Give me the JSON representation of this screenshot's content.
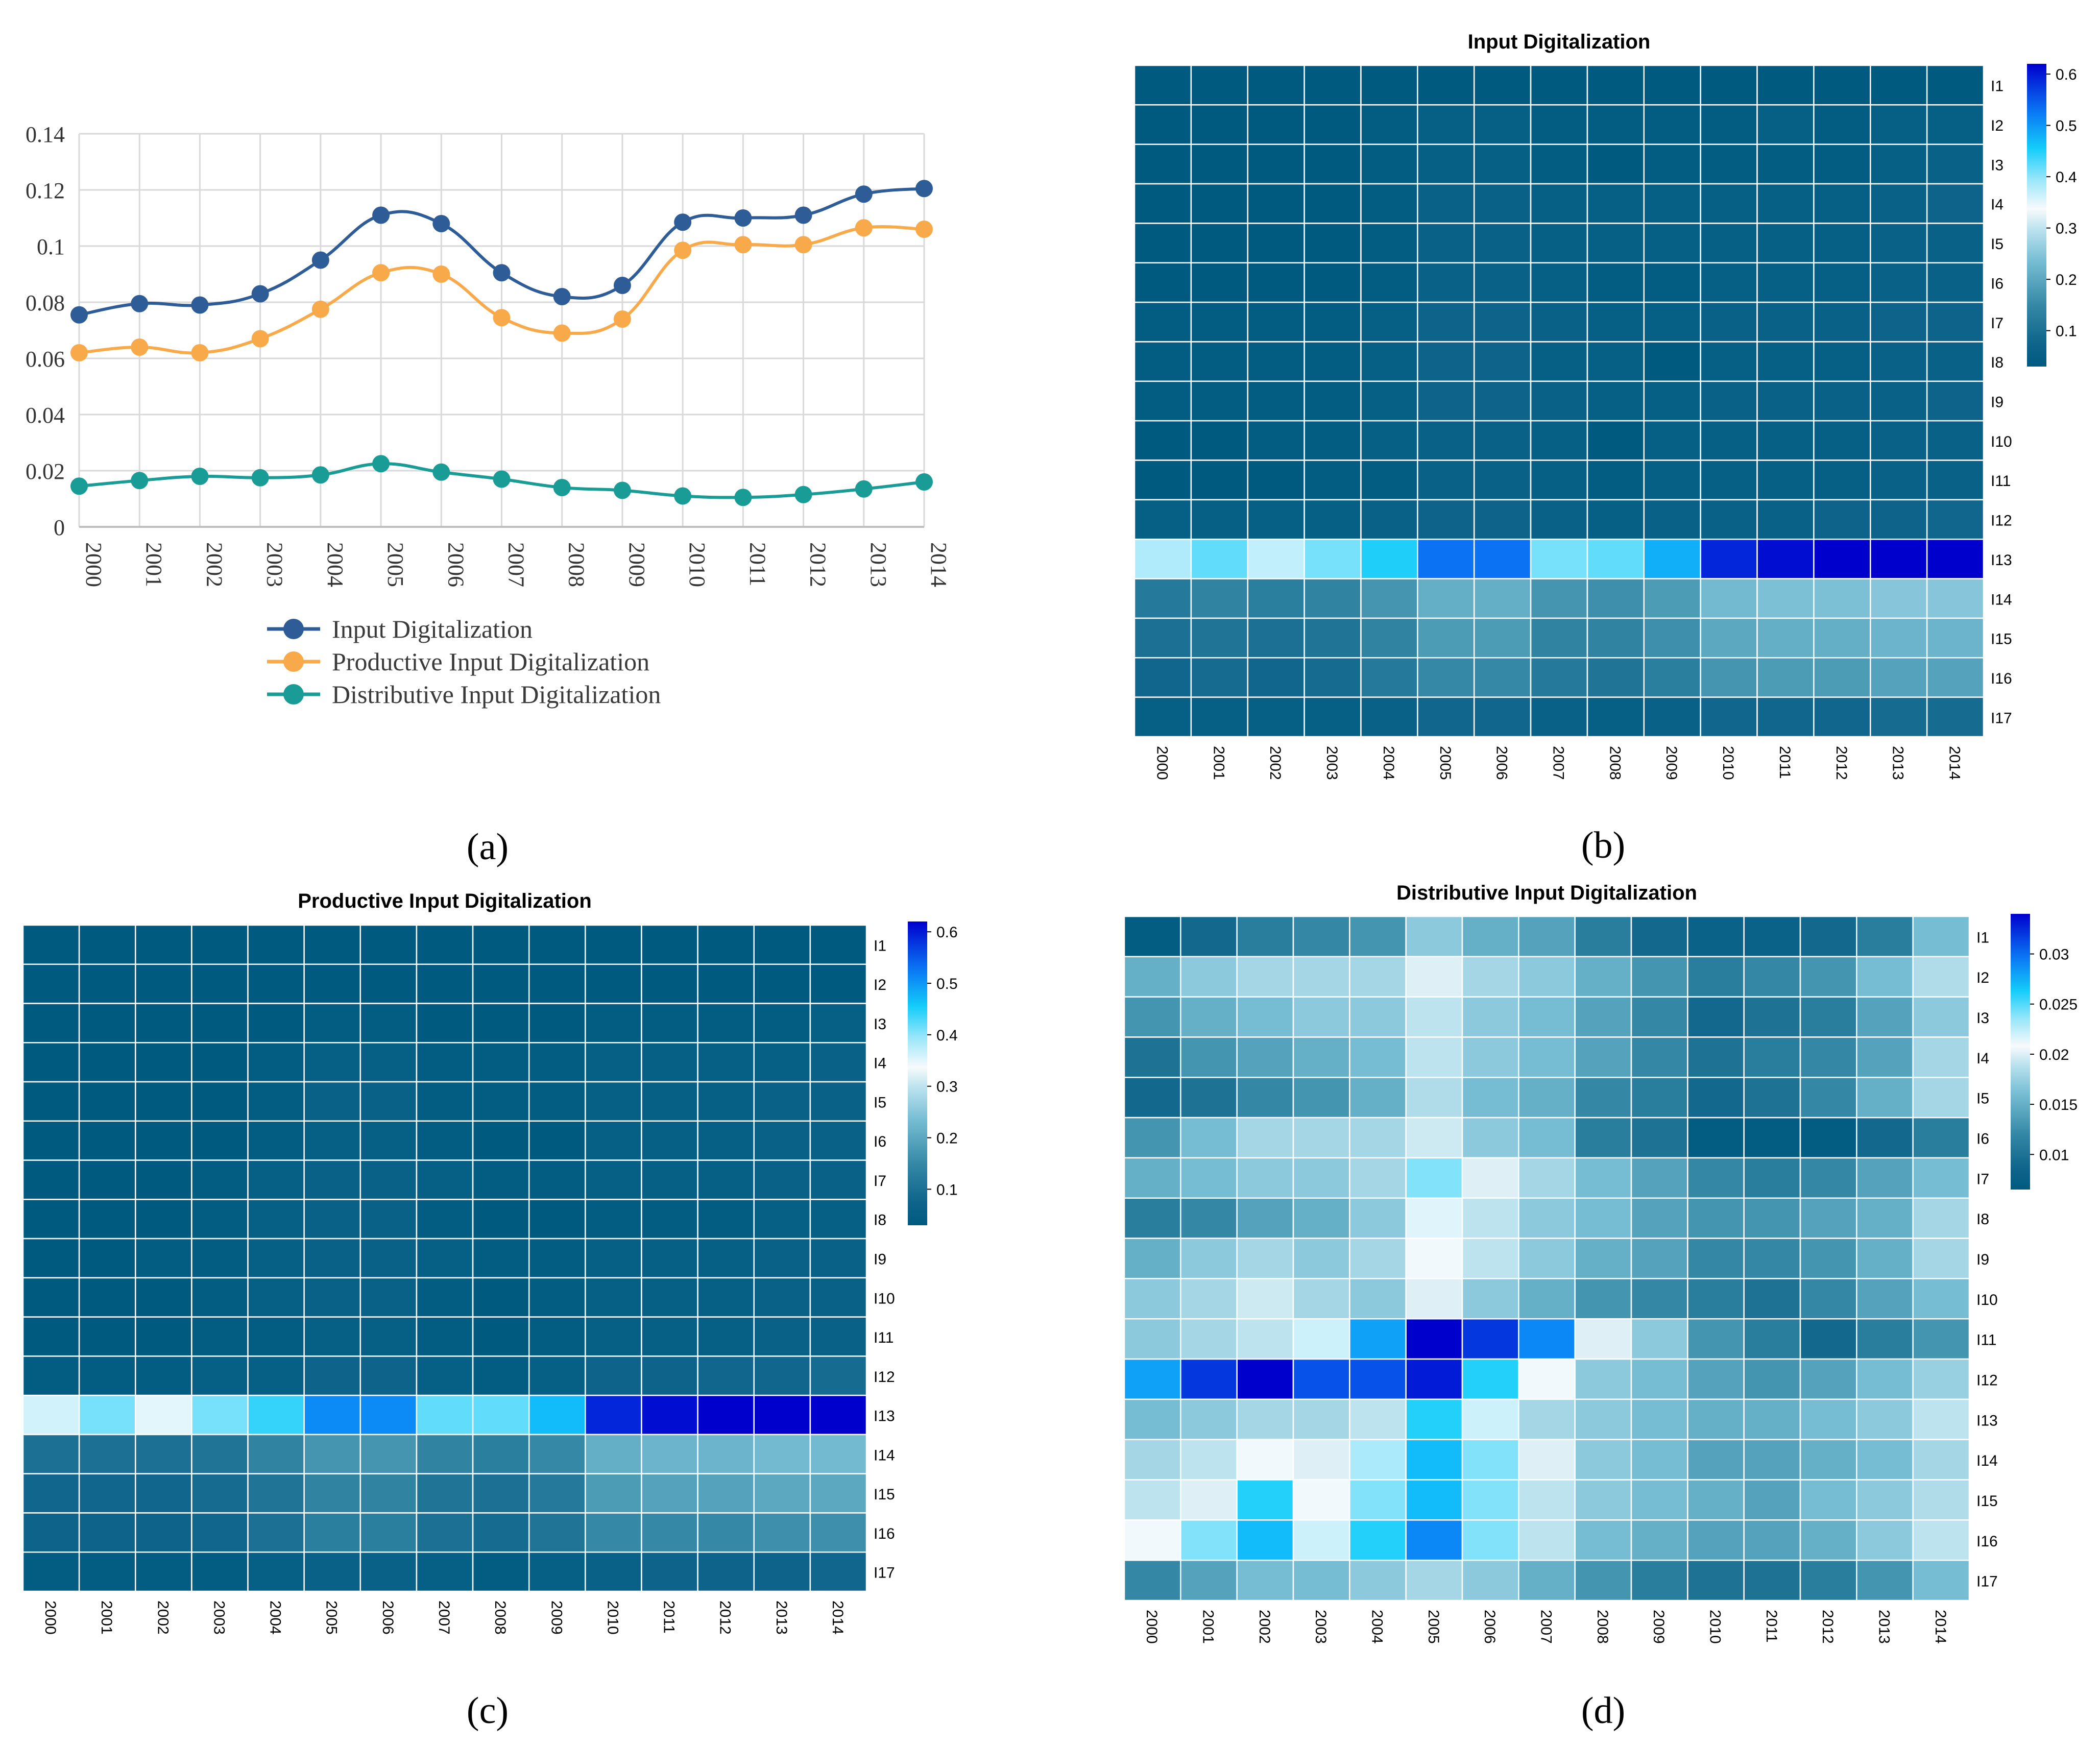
{
  "chart_data": [
    {
      "panel": "(a)",
      "type": "line",
      "title": "",
      "categories": [
        "2000",
        "2001",
        "2002",
        "2003",
        "2004",
        "2005",
        "2006",
        "2007",
        "2008",
        "2009",
        "2010",
        "2011",
        "2012",
        "2013",
        "2014"
      ],
      "y_ticks": [
        "0",
        "0.02",
        "0.04",
        "0.06",
        "0.08",
        "0.1",
        "0.12",
        "0.14"
      ],
      "ylim": [
        0,
        0.14
      ],
      "series": [
        {
          "name": "Input Digitalization",
          "color": "#2e5c97",
          "values": [
            0.0755,
            0.0795,
            0.079,
            0.083,
            0.095,
            0.111,
            0.108,
            0.0905,
            0.082,
            0.086,
            0.1085,
            0.11,
            0.111,
            0.1185,
            0.1205
          ]
        },
        {
          "name": "Productive Input Digitalization",
          "color": "#f8a94a",
          "values": [
            0.062,
            0.064,
            0.062,
            0.067,
            0.0775,
            0.0905,
            0.09,
            0.0745,
            0.069,
            0.074,
            0.0985,
            0.1005,
            0.1005,
            0.1065,
            0.106
          ]
        },
        {
          "name": "Distributive Input Digitalization",
          "color": "#1a9c96",
          "values": [
            0.0145,
            0.0165,
            0.018,
            0.0175,
            0.0185,
            0.0225,
            0.0195,
            0.017,
            0.014,
            0.013,
            0.011,
            0.0105,
            0.0115,
            0.0135,
            0.016
          ]
        }
      ]
    },
    {
      "panel": "(b)",
      "type": "heatmap",
      "title": "Input Digitalization",
      "columns": [
        "2000",
        "2001",
        "2002",
        "2003",
        "2004",
        "2005",
        "2006",
        "2007",
        "2008",
        "2009",
        "2010",
        "2011",
        "2012",
        "2013",
        "2014"
      ],
      "rows": [
        "I1",
        "I2",
        "I3",
        "I4",
        "I5",
        "I6",
        "I7",
        "I8",
        "I9",
        "I10",
        "I11",
        "I12",
        "I13",
        "I14",
        "I15",
        "I16",
        "I17"
      ],
      "color_scale": {
        "min": 0.03,
        "max": 0.62,
        "ticks": [
          "0.1",
          "0.2",
          "0.3",
          "0.4",
          "0.5",
          "0.6"
        ],
        "tick_values": [
          0.1,
          0.2,
          0.3,
          0.4,
          0.5,
          0.6
        ]
      },
      "values": [
        [
          0.01,
          0.01,
          0.01,
          0.01,
          0.01,
          0.02,
          0.02,
          0.02,
          0.01,
          0.02,
          0.01,
          0.02,
          0.02,
          0.02,
          0.03
        ],
        [
          0.03,
          0.03,
          0.03,
          0.03,
          0.04,
          0.05,
          0.05,
          0.04,
          0.04,
          0.04,
          0.04,
          0.05,
          0.04,
          0.05,
          0.05
        ],
        [
          0.03,
          0.03,
          0.03,
          0.03,
          0.04,
          0.05,
          0.05,
          0.04,
          0.03,
          0.04,
          0.04,
          0.04,
          0.04,
          0.05,
          0.06
        ],
        [
          0.03,
          0.03,
          0.03,
          0.03,
          0.04,
          0.06,
          0.06,
          0.05,
          0.05,
          0.05,
          0.05,
          0.05,
          0.05,
          0.06,
          0.07
        ],
        [
          0.02,
          0.02,
          0.02,
          0.02,
          0.04,
          0.06,
          0.06,
          0.05,
          0.05,
          0.05,
          0.05,
          0.05,
          0.05,
          0.06,
          0.06
        ],
        [
          0.02,
          0.03,
          0.03,
          0.03,
          0.04,
          0.06,
          0.06,
          0.05,
          0.04,
          0.04,
          0.05,
          0.05,
          0.05,
          0.06,
          0.06
        ],
        [
          0.04,
          0.04,
          0.04,
          0.04,
          0.05,
          0.07,
          0.07,
          0.06,
          0.05,
          0.05,
          0.06,
          0.06,
          0.06,
          0.07,
          0.07
        ],
        [
          0.04,
          0.04,
          0.04,
          0.04,
          0.05,
          0.07,
          0.07,
          0.05,
          0.05,
          0.03,
          0.05,
          0.05,
          0.05,
          0.06,
          0.06
        ],
        [
          0.04,
          0.04,
          0.04,
          0.04,
          0.05,
          0.07,
          0.07,
          0.06,
          0.05,
          0.05,
          0.06,
          0.06,
          0.06,
          0.06,
          0.07
        ],
        [
          0.03,
          0.03,
          0.04,
          0.04,
          0.05,
          0.06,
          0.06,
          0.05,
          0.03,
          0.05,
          0.05,
          0.05,
          0.05,
          0.06,
          0.06
        ],
        [
          0.03,
          0.03,
          0.03,
          0.04,
          0.04,
          0.06,
          0.06,
          0.05,
          0.04,
          0.05,
          0.05,
          0.05,
          0.05,
          0.06,
          0.06
        ],
        [
          0.05,
          0.05,
          0.05,
          0.05,
          0.06,
          0.07,
          0.07,
          0.06,
          0.05,
          0.06,
          0.06,
          0.06,
          0.07,
          0.07,
          0.08
        ],
        [
          0.38,
          0.42,
          0.37,
          0.41,
          0.45,
          0.53,
          0.53,
          0.41,
          0.42,
          0.48,
          0.59,
          0.61,
          0.62,
          0.62,
          0.62
        ],
        [
          0.12,
          0.14,
          0.13,
          0.14,
          0.17,
          0.21,
          0.21,
          0.17,
          0.16,
          0.18,
          0.23,
          0.24,
          0.24,
          0.25,
          0.25
        ],
        [
          0.1,
          0.11,
          0.1,
          0.11,
          0.14,
          0.18,
          0.18,
          0.14,
          0.14,
          0.16,
          0.2,
          0.21,
          0.21,
          0.22,
          0.22
        ],
        [
          0.08,
          0.09,
          0.08,
          0.09,
          0.12,
          0.15,
          0.15,
          0.12,
          0.11,
          0.13,
          0.17,
          0.18,
          0.18,
          0.19,
          0.19
        ],
        [
          0.05,
          0.05,
          0.05,
          0.05,
          0.06,
          0.08,
          0.08,
          0.06,
          0.05,
          0.06,
          0.08,
          0.08,
          0.08,
          0.09,
          0.09
        ]
      ]
    },
    {
      "panel": "(c)",
      "type": "heatmap",
      "title": "Productive Input Digitalization",
      "columns": [
        "2000",
        "2001",
        "2002",
        "2003",
        "2004",
        "2005",
        "2006",
        "2007",
        "2008",
        "2009",
        "2010",
        "2011",
        "2012",
        "2013",
        "2014"
      ],
      "rows": [
        "I1",
        "I2",
        "I3",
        "I4",
        "I5",
        "I6",
        "I7",
        "I8",
        "I9",
        "I10",
        "I11",
        "I12",
        "I13",
        "I14",
        "I15",
        "I16",
        "I17"
      ],
      "color_scale": {
        "min": 0.03,
        "max": 0.62,
        "ticks": [
          "0.1",
          "0.2",
          "0.3",
          "0.4",
          "0.5",
          "0.6"
        ],
        "tick_values": [
          0.1,
          0.2,
          0.3,
          0.4,
          0.5,
          0.6
        ]
      },
      "values": [
        [
          0.01,
          0.01,
          0.01,
          0.01,
          0.01,
          0.02,
          0.02,
          0.02,
          0.01,
          0.02,
          0.01,
          0.02,
          0.02,
          0.02,
          0.03
        ],
        [
          0.02,
          0.02,
          0.02,
          0.02,
          0.03,
          0.03,
          0.03,
          0.03,
          0.03,
          0.03,
          0.03,
          0.03,
          0.03,
          0.03,
          0.03
        ],
        [
          0.02,
          0.02,
          0.02,
          0.02,
          0.03,
          0.04,
          0.04,
          0.03,
          0.03,
          0.03,
          0.04,
          0.04,
          0.04,
          0.04,
          0.05
        ],
        [
          0.02,
          0.02,
          0.02,
          0.03,
          0.04,
          0.05,
          0.05,
          0.04,
          0.04,
          0.04,
          0.05,
          0.05,
          0.05,
          0.05,
          0.06
        ],
        [
          0.02,
          0.02,
          0.02,
          0.03,
          0.04,
          0.06,
          0.06,
          0.04,
          0.04,
          0.04,
          0.05,
          0.05,
          0.05,
          0.06,
          0.06
        ],
        [
          0.02,
          0.02,
          0.03,
          0.03,
          0.04,
          0.05,
          0.05,
          0.04,
          0.03,
          0.03,
          0.05,
          0.05,
          0.05,
          0.06,
          0.06
        ],
        [
          0.03,
          0.03,
          0.03,
          0.04,
          0.05,
          0.06,
          0.06,
          0.05,
          0.04,
          0.04,
          0.05,
          0.05,
          0.05,
          0.06,
          0.06
        ],
        [
          0.03,
          0.03,
          0.03,
          0.04,
          0.05,
          0.06,
          0.06,
          0.04,
          0.03,
          0.02,
          0.04,
          0.04,
          0.04,
          0.05,
          0.05
        ],
        [
          0.03,
          0.03,
          0.04,
          0.04,
          0.05,
          0.06,
          0.06,
          0.05,
          0.04,
          0.04,
          0.05,
          0.05,
          0.05,
          0.06,
          0.06
        ],
        [
          0.03,
          0.03,
          0.03,
          0.04,
          0.05,
          0.06,
          0.06,
          0.04,
          0.02,
          0.04,
          0.05,
          0.05,
          0.05,
          0.06,
          0.06
        ],
        [
          0.03,
          0.03,
          0.02,
          0.04,
          0.04,
          0.05,
          0.05,
          0.04,
          0.02,
          0.04,
          0.05,
          0.05,
          0.05,
          0.06,
          0.06
        ],
        [
          0.04,
          0.04,
          0.04,
          0.05,
          0.05,
          0.07,
          0.07,
          0.05,
          0.04,
          0.05,
          0.07,
          0.07,
          0.08,
          0.08,
          0.09
        ],
        [
          0.36,
          0.41,
          0.35,
          0.41,
          0.44,
          0.51,
          0.51,
          0.42,
          0.42,
          0.47,
          0.59,
          0.61,
          0.62,
          0.62,
          0.62
        ],
        [
          0.1,
          0.1,
          0.1,
          0.11,
          0.14,
          0.17,
          0.17,
          0.14,
          0.13,
          0.15,
          0.21,
          0.22,
          0.22,
          0.23,
          0.23
        ],
        [
          0.08,
          0.08,
          0.08,
          0.09,
          0.11,
          0.14,
          0.14,
          0.11,
          0.1,
          0.12,
          0.18,
          0.19,
          0.19,
          0.2,
          0.2
        ],
        [
          0.07,
          0.07,
          0.07,
          0.08,
          0.1,
          0.13,
          0.13,
          0.1,
          0.09,
          0.11,
          0.15,
          0.15,
          0.15,
          0.16,
          0.16
        ],
        [
          0.04,
          0.04,
          0.04,
          0.04,
          0.05,
          0.06,
          0.06,
          0.05,
          0.04,
          0.05,
          0.06,
          0.07,
          0.07,
          0.07,
          0.08
        ]
      ]
    },
    {
      "panel": "(d)",
      "type": "heatmap",
      "title": "Distributive Input Digitalization",
      "columns": [
        "2000",
        "2001",
        "2002",
        "2003",
        "2004",
        "2005",
        "2006",
        "2007",
        "2008",
        "2009",
        "2010",
        "2011",
        "2012",
        "2013",
        "2014"
      ],
      "rows": [
        "I1",
        "I2",
        "I3",
        "I4",
        "I5",
        "I6",
        "I7",
        "I8",
        "I9",
        "I10",
        "I11",
        "I12",
        "I13",
        "I14",
        "I15",
        "I16",
        "I17"
      ],
      "color_scale": {
        "min": 0.0065,
        "max": 0.034,
        "ticks": [
          "0.01",
          "0.015",
          "0.02",
          "0.025",
          "0.03"
        ],
        "tick_values": [
          0.01,
          0.015,
          0.02,
          0.025,
          0.03
        ]
      },
      "values": [
        [
          0.007,
          0.009,
          0.011,
          0.012,
          0.013,
          0.017,
          0.015,
          0.014,
          0.011,
          0.009,
          0.008,
          0.008,
          0.009,
          0.011,
          0.016
        ],
        [
          0.015,
          0.017,
          0.018,
          0.018,
          0.018,
          0.02,
          0.018,
          0.017,
          0.015,
          0.013,
          0.011,
          0.012,
          0.013,
          0.016,
          0.0185
        ],
        [
          0.013,
          0.015,
          0.016,
          0.017,
          0.017,
          0.019,
          0.017,
          0.016,
          0.014,
          0.012,
          0.009,
          0.01,
          0.011,
          0.014,
          0.017
        ],
        [
          0.01,
          0.013,
          0.014,
          0.015,
          0.016,
          0.019,
          0.017,
          0.016,
          0.014,
          0.012,
          0.01,
          0.011,
          0.012,
          0.014,
          0.018
        ],
        [
          0.009,
          0.01,
          0.012,
          0.013,
          0.015,
          0.0185,
          0.016,
          0.015,
          0.012,
          0.011,
          0.009,
          0.01,
          0.012,
          0.015,
          0.018
        ],
        [
          0.013,
          0.016,
          0.018,
          0.018,
          0.018,
          0.0195,
          0.017,
          0.016,
          0.011,
          0.01,
          0.007,
          0.007,
          0.007,
          0.009,
          0.011
        ],
        [
          0.015,
          0.016,
          0.017,
          0.017,
          0.018,
          0.024,
          0.02,
          0.018,
          0.016,
          0.014,
          0.012,
          0.011,
          0.012,
          0.014,
          0.016
        ],
        [
          0.011,
          0.012,
          0.014,
          0.015,
          0.017,
          0.0215,
          0.019,
          0.017,
          0.016,
          0.014,
          0.013,
          0.013,
          0.014,
          0.015,
          0.018
        ],
        [
          0.015,
          0.017,
          0.018,
          0.017,
          0.018,
          0.021,
          0.019,
          0.017,
          0.015,
          0.014,
          0.012,
          0.012,
          0.013,
          0.015,
          0.018
        ],
        [
          0.017,
          0.018,
          0.0195,
          0.018,
          0.017,
          0.02,
          0.017,
          0.015,
          0.013,
          0.012,
          0.011,
          0.01,
          0.012,
          0.014,
          0.016
        ],
        [
          0.017,
          0.018,
          0.019,
          0.022,
          0.028,
          0.034,
          0.032,
          0.029,
          0.02,
          0.017,
          0.013,
          0.011,
          0.009,
          0.011,
          0.013
        ],
        [
          0.028,
          0.032,
          0.034,
          0.031,
          0.031,
          0.033,
          0.026,
          0.021,
          0.017,
          0.016,
          0.014,
          0.013,
          0.014,
          0.016,
          0.0175
        ],
        [
          0.016,
          0.017,
          0.018,
          0.018,
          0.019,
          0.026,
          0.022,
          0.018,
          0.017,
          0.016,
          0.015,
          0.015,
          0.016,
          0.017,
          0.019
        ],
        [
          0.018,
          0.019,
          0.021,
          0.02,
          0.023,
          0.027,
          0.024,
          0.02,
          0.017,
          0.016,
          0.014,
          0.014,
          0.015,
          0.016,
          0.018
        ],
        [
          0.019,
          0.02,
          0.026,
          0.021,
          0.024,
          0.027,
          0.024,
          0.019,
          0.017,
          0.016,
          0.015,
          0.014,
          0.016,
          0.017,
          0.0185
        ],
        [
          0.021,
          0.024,
          0.027,
          0.022,
          0.026,
          0.029,
          0.024,
          0.019,
          0.016,
          0.015,
          0.014,
          0.014,
          0.015,
          0.017,
          0.019
        ],
        [
          0.012,
          0.014,
          0.016,
          0.016,
          0.017,
          0.018,
          0.017,
          0.015,
          0.013,
          0.011,
          0.01,
          0.01,
          0.011,
          0.013,
          0.016
        ]
      ]
    }
  ],
  "captions": {
    "a": "(a)",
    "b": "(b)",
    "c": "(c)",
    "d": "(d)"
  }
}
